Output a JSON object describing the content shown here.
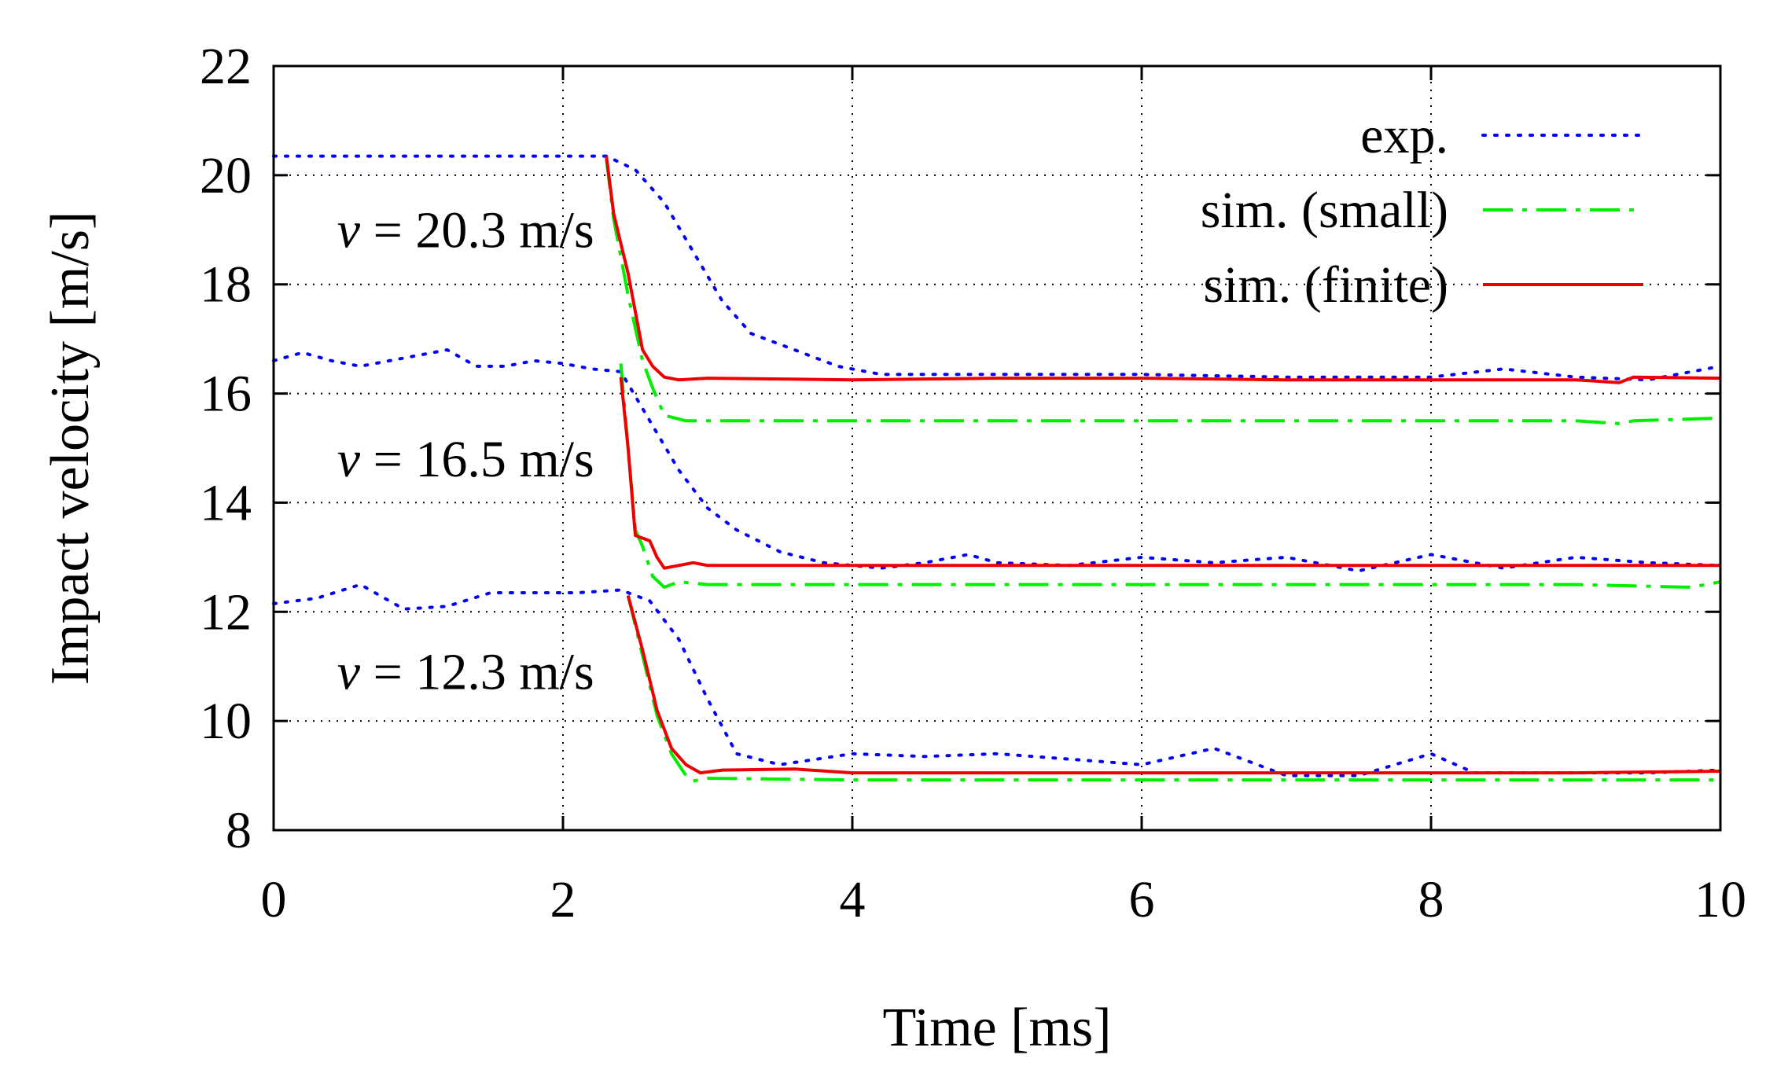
{
  "chart_data": {
    "type": "line",
    "title": "",
    "xlabel": "Time [ms]",
    "ylabel": "Impact velocity [m/s]",
    "xlim": [
      0,
      10
    ],
    "ylim": [
      8,
      22
    ],
    "xticks": [
      0,
      2,
      4,
      6,
      8,
      10
    ],
    "yticks": [
      8,
      10,
      12,
      14,
      16,
      18,
      20,
      22
    ],
    "grid": true,
    "legend_position": "top-right",
    "annotations": [
      {
        "prefix": "v",
        "text": " = 20.3 m/s",
        "x": 0.2,
        "y": 19.0
      },
      {
        "prefix": "v",
        "text": " = 16.5 m/s",
        "x": 0.2,
        "y": 14.8
      },
      {
        "prefix": "v",
        "text": " = 12.3 m/s",
        "x": 0.2,
        "y": 10.9
      }
    ],
    "series": [
      {
        "name": "exp.",
        "case": "20.3",
        "color": "#0000ff",
        "style": "dotted",
        "legend": true,
        "x": [
          0,
          0.5,
          1.0,
          1.5,
          2.0,
          2.3,
          2.5,
          2.7,
          2.9,
          3.1,
          3.3,
          3.6,
          3.9,
          4.2,
          5.0,
          6.0,
          7.0,
          8.0,
          8.5,
          9.0,
          9.5,
          10.0
        ],
        "y": [
          20.35,
          20.35,
          20.35,
          20.35,
          20.35,
          20.35,
          20.1,
          19.5,
          18.6,
          17.7,
          17.1,
          16.8,
          16.5,
          16.35,
          16.35,
          16.35,
          16.3,
          16.3,
          16.45,
          16.3,
          16.25,
          16.5
        ]
      },
      {
        "name": "sim. (small)",
        "case": "20.3",
        "color": "#00ee00",
        "style": "dashdot",
        "legend": true,
        "x": [
          2.3,
          2.35,
          2.45,
          2.55,
          2.62,
          2.7,
          2.85,
          3.0,
          4.0,
          5.0,
          6.0,
          7.0,
          8.0,
          9.0,
          9.3,
          9.4,
          10.0
        ],
        "y": [
          20.3,
          19.2,
          17.8,
          16.6,
          16.1,
          15.6,
          15.5,
          15.5,
          15.5,
          15.5,
          15.5,
          15.5,
          15.5,
          15.5,
          15.45,
          15.5,
          15.55
        ]
      },
      {
        "name": "sim. (finite)",
        "case": "20.3",
        "color": "#ee0000",
        "style": "solid",
        "legend": true,
        "x": [
          2.3,
          2.35,
          2.45,
          2.55,
          2.62,
          2.7,
          2.8,
          3.0,
          4.0,
          5.0,
          6.0,
          7.0,
          8.0,
          9.0,
          9.3,
          9.4,
          10.0
        ],
        "y": [
          20.35,
          19.3,
          18.2,
          16.8,
          16.5,
          16.3,
          16.25,
          16.28,
          16.25,
          16.28,
          16.28,
          16.25,
          16.25,
          16.25,
          16.2,
          16.3,
          16.28
        ]
      },
      {
        "name": "exp.",
        "case": "16.5",
        "color": "#0000ff",
        "style": "dotted",
        "legend": false,
        "x": [
          0,
          0.2,
          0.4,
          0.6,
          0.8,
          1.0,
          1.2,
          1.4,
          1.6,
          1.8,
          2.0,
          2.2,
          2.4,
          2.6,
          2.8,
          3.0,
          3.2,
          3.5,
          3.8,
          4.2,
          4.5,
          4.8,
          5.0,
          5.5,
          6.0,
          6.5,
          7.0,
          7.5,
          8.0,
          8.5,
          9.0,
          9.5,
          10.0
        ],
        "y": [
          16.6,
          16.75,
          16.6,
          16.5,
          16.6,
          16.7,
          16.8,
          16.5,
          16.5,
          16.6,
          16.55,
          16.45,
          16.4,
          15.5,
          14.6,
          13.9,
          13.5,
          13.1,
          12.9,
          12.8,
          12.9,
          13.05,
          12.9,
          12.85,
          13.0,
          12.9,
          13.0,
          12.75,
          13.05,
          12.8,
          13.0,
          12.9,
          12.85
        ]
      },
      {
        "name": "sim. (small)",
        "case": "16.5",
        "color": "#00ee00",
        "style": "dashdot",
        "legend": false,
        "x": [
          2.4,
          2.45,
          2.5,
          2.55,
          2.62,
          2.7,
          2.8,
          3.0,
          4.0,
          5.0,
          6.0,
          7.0,
          8.0,
          9.0,
          9.8,
          10.0
        ],
        "y": [
          16.55,
          15.0,
          13.5,
          13.2,
          12.65,
          12.45,
          12.55,
          12.5,
          12.5,
          12.5,
          12.5,
          12.5,
          12.5,
          12.5,
          12.45,
          12.55
        ]
      },
      {
        "name": "sim. (finite)",
        "case": "16.5",
        "color": "#ee0000",
        "style": "solid",
        "legend": false,
        "x": [
          2.4,
          2.45,
          2.5,
          2.6,
          2.65,
          2.7,
          2.8,
          2.9,
          3.0,
          4.0,
          5.0,
          6.0,
          7.0,
          8.0,
          9.0,
          10.0
        ],
        "y": [
          16.3,
          15.0,
          13.4,
          13.3,
          13.0,
          12.8,
          12.85,
          12.9,
          12.85,
          12.85,
          12.85,
          12.85,
          12.85,
          12.85,
          12.85,
          12.85
        ]
      },
      {
        "name": "exp.",
        "case": "12.3",
        "color": "#0000ff",
        "style": "dotted",
        "legend": false,
        "x": [
          0,
          0.3,
          0.6,
          0.9,
          1.2,
          1.5,
          1.8,
          2.1,
          2.4,
          2.6,
          2.8,
          3.0,
          3.2,
          3.5,
          4.0,
          4.5,
          5.0,
          5.5,
          6.0,
          6.5,
          7.0,
          7.5,
          8.0,
          8.3,
          8.6,
          9.0,
          9.5,
          10.0
        ],
        "y": [
          12.15,
          12.25,
          12.5,
          12.05,
          12.1,
          12.35,
          12.35,
          12.35,
          12.4,
          12.2,
          11.5,
          10.4,
          9.4,
          9.2,
          9.4,
          9.35,
          9.4,
          9.3,
          9.2,
          9.5,
          9.0,
          9.0,
          9.4,
          9.05,
          9.05,
          9.05,
          9.05,
          9.1
        ]
      },
      {
        "name": "sim. (small)",
        "case": "12.3",
        "color": "#00ee00",
        "style": "dashdot",
        "legend": false,
        "x": [
          2.45,
          2.55,
          2.65,
          2.75,
          2.85,
          2.9,
          3.0,
          4.0,
          5.0,
          6.0,
          7.0,
          8.0,
          9.0,
          10.0
        ],
        "y": [
          12.3,
          11.2,
          10.1,
          9.4,
          9.0,
          8.9,
          8.95,
          8.92,
          8.92,
          8.92,
          8.92,
          8.92,
          8.92,
          8.92
        ]
      },
      {
        "name": "sim. (finite)",
        "case": "12.3",
        "color": "#ee0000",
        "style": "solid",
        "legend": false,
        "x": [
          2.45,
          2.55,
          2.65,
          2.75,
          2.85,
          2.95,
          3.1,
          3.6,
          4.0,
          5.0,
          6.0,
          7.0,
          8.0,
          9.0,
          10.0
        ],
        "y": [
          12.3,
          11.3,
          10.2,
          9.5,
          9.2,
          9.05,
          9.1,
          9.12,
          9.05,
          9.05,
          9.05,
          9.05,
          9.05,
          9.05,
          9.08
        ]
      }
    ]
  }
}
